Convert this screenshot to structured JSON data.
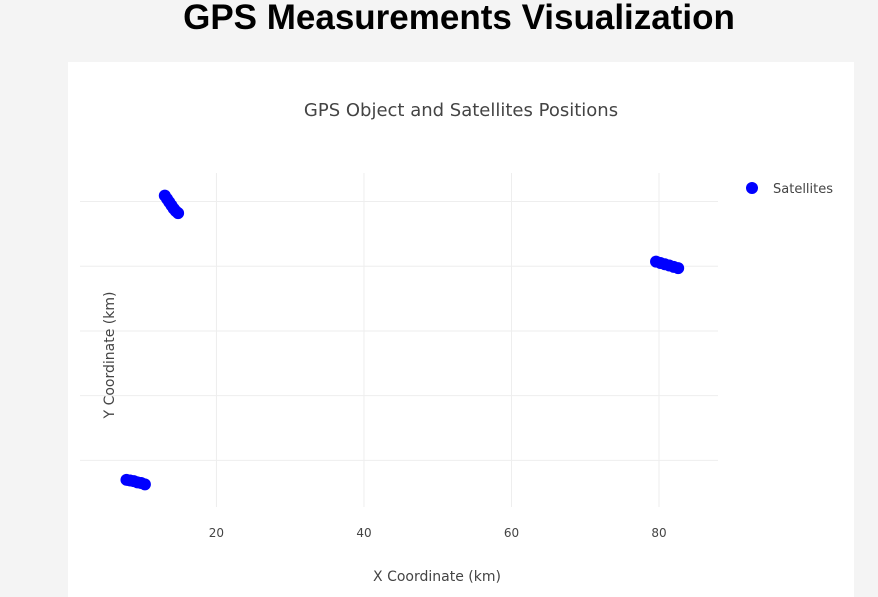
{
  "page": {
    "title": "GPS Measurements Visualization"
  },
  "chart_data": {
    "type": "scatter",
    "title": "GPS Object and Satellites Positions",
    "xlabel": "X Coordinate (km)",
    "ylabel": "Y Coordinate (km)",
    "xlim": [
      1.5,
      88
    ],
    "ylim": [
      2.8,
      54.4
    ],
    "x_ticks": [
      20,
      40,
      60,
      80
    ],
    "y_ticks": [
      10,
      20,
      30,
      40,
      50
    ],
    "grid": true,
    "legend": "top-right",
    "series": [
      {
        "name": "Satellites",
        "color": "#0000ff",
        "mode": "markers",
        "x": [
          13.0,
          13.3,
          13.6,
          13.9,
          14.2,
          14.5,
          14.8,
          79.6,
          80.2,
          80.8,
          81.4,
          82.0,
          82.6,
          7.8,
          8.3,
          8.8,
          9.3,
          9.8,
          10.3
        ],
        "y": [
          50.9,
          50.4,
          49.9,
          49.4,
          48.9,
          48.5,
          48.2,
          40.7,
          40.5,
          40.3,
          40.1,
          39.9,
          39.7,
          7.0,
          6.9,
          6.8,
          6.6,
          6.5,
          6.3
        ]
      }
    ]
  }
}
